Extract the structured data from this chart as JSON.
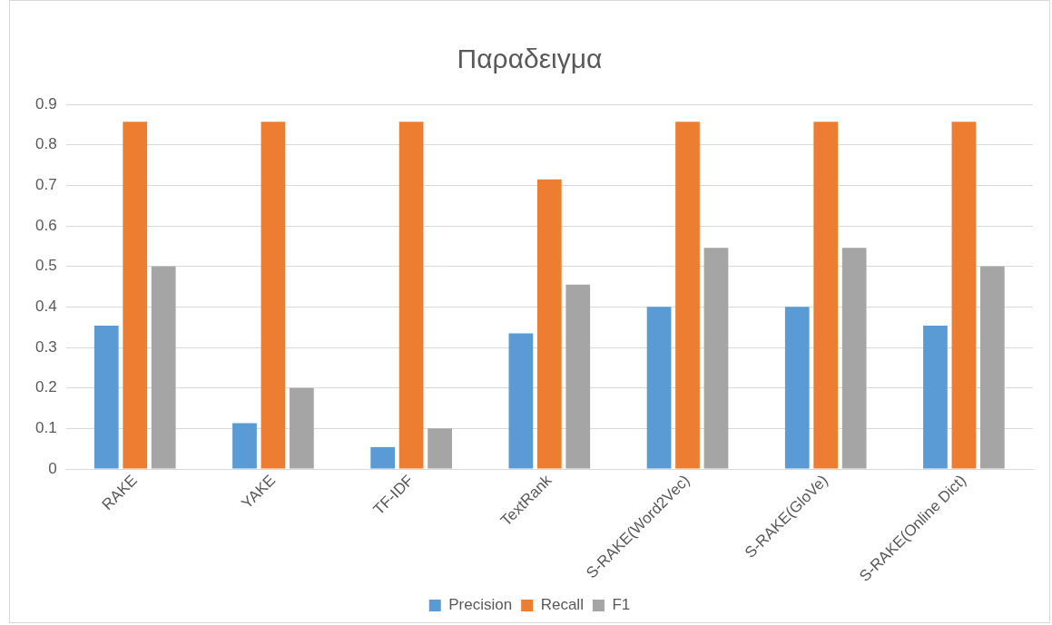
{
  "chart_data": {
    "type": "bar",
    "title": "Παραδειγμα",
    "categories": [
      "RAKE",
      "YAKE",
      "TF-IDF",
      "TextRank",
      "S-RAKE(Word2Vec)",
      "S-RAKE(GloVe)",
      "S-RAKE(Online Dict)"
    ],
    "series": [
      {
        "name": "Precision",
        "color": "#5b9bd5",
        "values": [
          0.354,
          0.113,
          0.054,
          0.335,
          0.4,
          0.4,
          0.354
        ]
      },
      {
        "name": "Recall",
        "color": "#ed7d31",
        "values": [
          0.857,
          0.857,
          0.857,
          0.715,
          0.857,
          0.857,
          0.857
        ]
      },
      {
        "name": "F1",
        "color": "#a5a5a5",
        "values": [
          0.5,
          0.2,
          0.1,
          0.455,
          0.546,
          0.546,
          0.5
        ]
      }
    ],
    "ylim": [
      0,
      0.9
    ],
    "yticks": [
      0,
      0.1,
      0.2,
      0.3,
      0.4,
      0.5,
      0.6,
      0.7,
      0.8,
      0.9
    ],
    "grid": "y",
    "legend": "bottom"
  }
}
